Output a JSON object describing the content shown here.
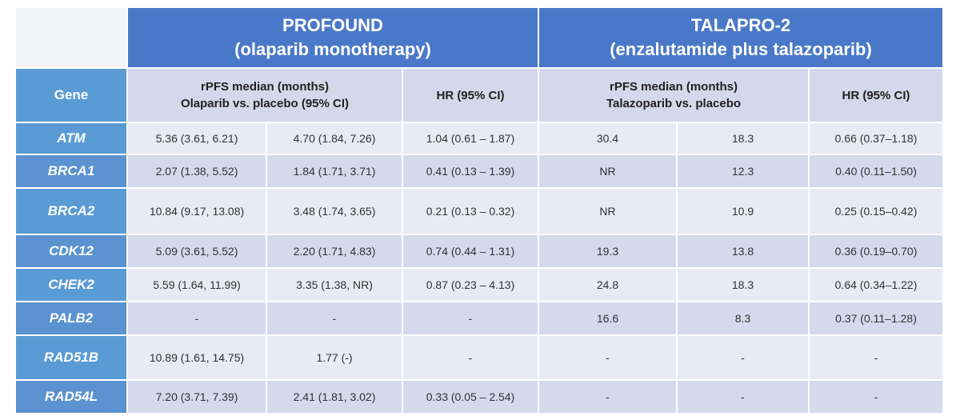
{
  "table": {
    "groups": [
      {
        "title": "PROFOUND",
        "subtitle": "(olaparib monotherapy)"
      },
      {
        "title": "TALAPRO-2",
        "subtitle": "(enzalutamide plus talazoparib)"
      }
    ],
    "gene_header": "Gene",
    "subheaders": [
      {
        "line1": "rPFS median (months)",
        "line2": "Olaparib vs. placebo (95% CI)"
      },
      {
        "line1": "HR (95% CI)"
      },
      {
        "line1": "rPFS median (months)",
        "line2": "Talazoparib vs. placebo"
      },
      {
        "line1": "HR (95% CI)"
      }
    ],
    "rows": [
      [
        "ATM",
        "5.36 (3.61, 6.21)",
        "4.70 (1.84, 7.26)",
        "1.04 (0.61 – 1.87)",
        "30.4",
        "18.3",
        "0.66 (0.37–1.18)"
      ],
      [
        "BRCA1",
        "2.07 (1.38, 5.52)",
        "1.84 (1.71, 3.71)",
        "0.41 (0.13 – 1.39)",
        "NR",
        "12.3",
        "0.40 (0.11–1.50)"
      ],
      [
        "BRCA2",
        "10.84 (9.17, 13.08)",
        "3.48 (1.74, 3.65)",
        "0.21 (0.13 – 0.32)",
        "NR",
        "10.9",
        "0.25 (0.15–0.42)"
      ],
      [
        "CDK12",
        "5.09 (3.61, 5.52)",
        "2.20 (1.71, 4.83)",
        "0.74 (0.44 – 1.31)",
        "19.3",
        "13.8",
        "0.36 (0.19–0.70)"
      ],
      [
        "CHEK2",
        "5.59 (1.64, 11.99)",
        "3.35 (1.38, NR)",
        "0.87 (0.23 – 4.13)",
        "24.8",
        "18.3",
        "0.64 (0.34–1.22)"
      ],
      [
        "PALB2",
        "-",
        "-",
        "-",
        "16.6",
        "8.3",
        "0.37 (0.11–1.28)"
      ],
      [
        "RAD51B",
        "10.89 (1.61, 14.75)",
        "1.77 (-)",
        "-",
        "-",
        "-",
        "-"
      ],
      [
        "RAD54L",
        "7.20 (3.71, 7.39)",
        "2.41 (1.81, 3.02)",
        "0.33 (0.05 – 2.54)",
        "-",
        "-",
        "-"
      ]
    ]
  }
}
